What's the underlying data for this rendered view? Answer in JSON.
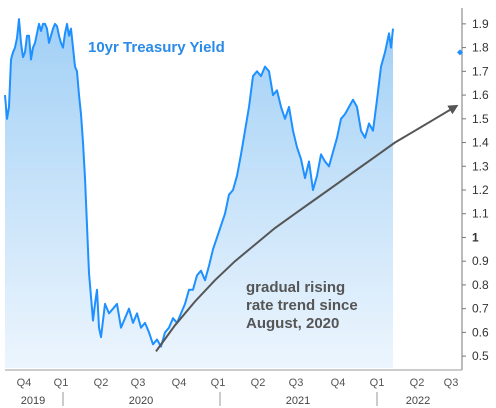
{
  "chart_data": {
    "type": "area",
    "title": "10yr Treasury Yield",
    "annotation": [
      "gradual rising",
      "rate trend since",
      "August, 2020"
    ],
    "ylim": [
      0.45,
      1.95
    ],
    "yticks": [
      "0.5",
      "0.6",
      "0.7",
      "0.8",
      "0.9",
      "1",
      "1.1",
      "1.2",
      "1.3",
      "1.4",
      "1.5",
      "1.6",
      "1.7",
      "1.8",
      "1.9"
    ],
    "quarter_ticks": [
      "Q4",
      "Q1",
      "Q2",
      "Q3",
      "Q4",
      "Q1",
      "Q2",
      "Q3",
      "Q4",
      "Q1",
      "Q2",
      "Q3"
    ],
    "years": [
      "2019",
      "2020",
      "2021",
      "2022"
    ],
    "grid": false,
    "series": [
      {
        "color": "#1e90ff",
        "x": [
          0,
          2,
          4,
          6,
          8,
          10,
          12,
          14,
          16,
          18,
          20,
          22,
          24,
          26,
          28,
          30,
          32,
          34,
          36,
          38,
          40,
          42,
          44,
          46,
          48,
          50,
          52,
          54,
          56,
          58,
          60,
          62,
          64,
          66,
          68,
          70,
          72,
          74,
          76,
          78,
          80,
          82,
          84,
          86,
          88,
          90,
          92,
          94,
          96,
          98,
          100,
          104,
          108,
          112,
          116,
          120,
          124,
          128,
          132,
          136,
          140,
          144,
          148,
          152,
          156,
          160,
          164,
          168,
          172,
          176,
          180,
          184,
          188,
          192,
          196,
          200,
          204,
          208,
          212,
          216,
          220,
          224,
          228,
          232,
          236,
          240,
          244,
          248,
          252,
          256,
          260,
          264,
          268,
          272,
          276,
          280,
          284,
          288,
          292,
          296,
          300,
          304,
          308,
          312,
          316,
          320,
          324,
          328,
          332,
          336,
          340,
          344,
          348,
          352,
          356,
          360,
          364,
          368,
          372,
          376,
          380,
          384,
          386,
          388
        ],
        "values": [
          1.6,
          1.5,
          1.55,
          1.75,
          1.78,
          1.8,
          1.84,
          1.92,
          1.82,
          1.76,
          1.78,
          1.85,
          1.85,
          1.75,
          1.8,
          1.82,
          1.86,
          1.9,
          1.87,
          1.9,
          1.9,
          1.88,
          1.82,
          1.85,
          1.88,
          1.9,
          1.89,
          1.85,
          1.82,
          1.8,
          1.86,
          1.9,
          1.85,
          1.88,
          1.8,
          1.72,
          1.7,
          1.6,
          1.52,
          1.4,
          1.25,
          1.05,
          0.85,
          0.75,
          0.65,
          0.72,
          0.78,
          0.62,
          0.58,
          0.65,
          0.72,
          0.68,
          0.7,
          0.72,
          0.62,
          0.66,
          0.7,
          0.64,
          0.68,
          0.62,
          0.64,
          0.6,
          0.55,
          0.57,
          0.54,
          0.6,
          0.62,
          0.66,
          0.64,
          0.68,
          0.72,
          0.78,
          0.78,
          0.84,
          0.86,
          0.82,
          0.88,
          0.95,
          1.0,
          1.05,
          1.1,
          1.18,
          1.2,
          1.26,
          1.35,
          1.45,
          1.55,
          1.68,
          1.7,
          1.68,
          1.72,
          1.7,
          1.6,
          1.62,
          1.55,
          1.5,
          1.55,
          1.45,
          1.38,
          1.33,
          1.25,
          1.32,
          1.2,
          1.26,
          1.35,
          1.32,
          1.3,
          1.36,
          1.42,
          1.5,
          1.52,
          1.55,
          1.58,
          1.55,
          1.45,
          1.42,
          1.48,
          1.45,
          1.58,
          1.72,
          1.78,
          1.86,
          1.8,
          1.88
        ]
      }
    ],
    "trend_arrow": {
      "x": [
        156,
        175,
        195,
        215,
        235,
        255,
        275,
        295,
        315,
        335,
        355,
        375,
        395,
        415,
        435,
        455
      ],
      "values": [
        0.52,
        0.63,
        0.73,
        0.82,
        0.9,
        0.97,
        1.04,
        1.1,
        1.16,
        1.22,
        1.28,
        1.34,
        1.4,
        1.45,
        1.5,
        1.55
      ]
    },
    "marker_value": 1.78
  }
}
